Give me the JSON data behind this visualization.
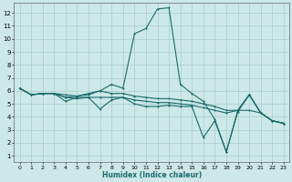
{
  "title": "",
  "xlabel": "Humidex (Indice chaleur)",
  "bg_color": "#cce8e8",
  "grid_color": "#aacccc",
  "line_color": "#1a6b6b",
  "xlim": [
    -0.5,
    23.5
  ],
  "ylim": [
    0.5,
    12.8
  ],
  "xticks": [
    0,
    1,
    2,
    3,
    4,
    5,
    6,
    7,
    8,
    9,
    10,
    11,
    12,
    13,
    14,
    15,
    16,
    17,
    18,
    19,
    20,
    21,
    22,
    23
  ],
  "yticks": [
    1,
    2,
    3,
    4,
    5,
    6,
    7,
    8,
    9,
    10,
    11,
    12
  ],
  "series1": [
    [
      0,
      6.2
    ],
    [
      1,
      5.7
    ],
    [
      2,
      5.8
    ],
    [
      3,
      5.8
    ],
    [
      4,
      5.7
    ],
    [
      5,
      5.6
    ],
    [
      6,
      5.8
    ],
    [
      7,
      6.0
    ],
    [
      8,
      6.5
    ],
    [
      9,
      6.2
    ],
    [
      10,
      10.4
    ],
    [
      11,
      10.8
    ],
    [
      12,
      12.3
    ],
    [
      13,
      12.4
    ],
    [
      14,
      6.5
    ],
    [
      15,
      5.8
    ],
    [
      16,
      5.2
    ],
    [
      17,
      3.8
    ],
    [
      18,
      1.3
    ],
    [
      19,
      4.5
    ],
    [
      20,
      5.7
    ],
    [
      21,
      4.3
    ],
    [
      22,
      3.7
    ],
    [
      23,
      3.5
    ]
  ],
  "series2": [
    [
      0,
      6.2
    ],
    [
      1,
      5.7
    ],
    [
      2,
      5.8
    ],
    [
      3,
      5.8
    ],
    [
      4,
      5.5
    ],
    [
      5,
      5.4
    ],
    [
      6,
      5.5
    ],
    [
      7,
      5.5
    ],
    [
      8,
      5.5
    ],
    [
      9,
      5.5
    ],
    [
      10,
      5.3
    ],
    [
      11,
      5.2
    ],
    [
      12,
      5.1
    ],
    [
      13,
      5.1
    ],
    [
      14,
      5.0
    ],
    [
      15,
      4.9
    ],
    [
      16,
      4.7
    ],
    [
      17,
      4.5
    ],
    [
      18,
      4.3
    ],
    [
      19,
      4.5
    ],
    [
      20,
      4.5
    ],
    [
      21,
      4.3
    ],
    [
      22,
      3.7
    ],
    [
      23,
      3.5
    ]
  ],
  "series3": [
    [
      0,
      6.2
    ],
    [
      1,
      5.7
    ],
    [
      2,
      5.8
    ],
    [
      3,
      5.8
    ],
    [
      4,
      5.5
    ],
    [
      5,
      5.6
    ],
    [
      6,
      5.7
    ],
    [
      7,
      6.0
    ],
    [
      8,
      5.8
    ],
    [
      9,
      5.8
    ],
    [
      10,
      5.6
    ],
    [
      11,
      5.5
    ],
    [
      12,
      5.4
    ],
    [
      13,
      5.4
    ],
    [
      14,
      5.3
    ],
    [
      15,
      5.2
    ],
    [
      16,
      5.0
    ],
    [
      17,
      4.8
    ],
    [
      18,
      4.5
    ],
    [
      19,
      4.5
    ],
    [
      20,
      5.7
    ],
    [
      21,
      4.3
    ],
    [
      22,
      3.7
    ],
    [
      23,
      3.5
    ]
  ],
  "series4": [
    [
      0,
      6.2
    ],
    [
      1,
      5.7
    ],
    [
      2,
      5.8
    ],
    [
      3,
      5.8
    ],
    [
      4,
      5.2
    ],
    [
      5,
      5.5
    ],
    [
      6,
      5.5
    ],
    [
      7,
      4.6
    ],
    [
      8,
      5.3
    ],
    [
      9,
      5.5
    ],
    [
      10,
      5.0
    ],
    [
      11,
      4.8
    ],
    [
      12,
      4.8
    ],
    [
      13,
      4.9
    ],
    [
      14,
      4.8
    ],
    [
      15,
      4.8
    ],
    [
      16,
      2.4
    ],
    [
      17,
      3.7
    ],
    [
      18,
      1.3
    ],
    [
      19,
      4.4
    ],
    [
      20,
      5.7
    ],
    [
      21,
      4.3
    ],
    [
      22,
      3.7
    ],
    [
      23,
      3.5
    ]
  ]
}
